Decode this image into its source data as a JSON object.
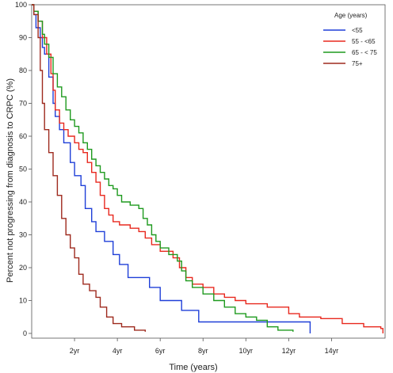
{
  "chart_data": {
    "type": "line",
    "subtype": "kaplan-meier-step",
    "xlabel": "Time (years)",
    "ylabel": "Percent not progressing from diagnosis to CRPC (%)",
    "xlim": [
      0,
      16.5
    ],
    "ylim": [
      0,
      100
    ],
    "y_ticks": [
      0,
      10,
      20,
      30,
      40,
      50,
      60,
      70,
      80,
      90,
      100
    ],
    "x_ticks": [
      {
        "value": 2,
        "label": "2yr"
      },
      {
        "value": 4,
        "label": "4yr"
      },
      {
        "value": 6,
        "label": "6yr"
      },
      {
        "value": 8,
        "label": "8yr"
      },
      {
        "value": 10,
        "label": "10yr"
      },
      {
        "value": 12,
        "label": "12yr"
      },
      {
        "value": 14,
        "label": "14yr"
      }
    ],
    "grid": false,
    "legend": {
      "title": "Age (years)",
      "position": "top-right"
    },
    "series": [
      {
        "name": "<55",
        "color": "#1f3fd8",
        "points": [
          [
            0,
            100
          ],
          [
            0.1,
            97
          ],
          [
            0.2,
            93
          ],
          [
            0.4,
            90
          ],
          [
            0.5,
            87
          ],
          [
            0.6,
            85
          ],
          [
            0.8,
            78
          ],
          [
            1.0,
            70
          ],
          [
            1.1,
            66
          ],
          [
            1.3,
            62
          ],
          [
            1.5,
            58
          ],
          [
            1.8,
            52
          ],
          [
            2.0,
            48
          ],
          [
            2.3,
            45
          ],
          [
            2.5,
            38
          ],
          [
            2.8,
            34
          ],
          [
            3.0,
            31
          ],
          [
            3.4,
            28
          ],
          [
            3.8,
            24
          ],
          [
            4.1,
            21
          ],
          [
            4.5,
            17
          ],
          [
            5.5,
            14
          ],
          [
            6.0,
            10
          ],
          [
            7.0,
            7
          ],
          [
            7.8,
            3.5
          ],
          [
            9.0,
            3.5
          ],
          [
            10.5,
            3.5
          ],
          [
            13.0,
            3.5
          ],
          [
            13.0,
            0
          ]
        ]
      },
      {
        "name": "55 - <65",
        "color": "#e8281e",
        "points": [
          [
            0,
            100
          ],
          [
            0.1,
            98
          ],
          [
            0.3,
            95
          ],
          [
            0.5,
            90
          ],
          [
            0.7,
            85
          ],
          [
            0.9,
            79
          ],
          [
            1.0,
            74
          ],
          [
            1.1,
            68
          ],
          [
            1.3,
            64
          ],
          [
            1.5,
            62
          ],
          [
            1.7,
            60
          ],
          [
            2.0,
            58
          ],
          [
            2.2,
            56
          ],
          [
            2.4,
            55
          ],
          [
            2.6,
            52
          ],
          [
            2.8,
            49
          ],
          [
            3.0,
            46
          ],
          [
            3.2,
            42
          ],
          [
            3.4,
            38
          ],
          [
            3.6,
            36
          ],
          [
            3.8,
            34
          ],
          [
            4.1,
            33
          ],
          [
            4.6,
            32
          ],
          [
            5.0,
            31
          ],
          [
            5.3,
            29
          ],
          [
            5.6,
            27
          ],
          [
            6.0,
            25
          ],
          [
            6.6,
            23
          ],
          [
            6.9,
            20
          ],
          [
            7.2,
            17
          ],
          [
            7.5,
            15
          ],
          [
            8.0,
            14
          ],
          [
            8.5,
            12
          ],
          [
            9.0,
            11
          ],
          [
            9.5,
            10
          ],
          [
            10.0,
            9
          ],
          [
            11.0,
            8
          ],
          [
            12.0,
            6
          ],
          [
            12.5,
            5
          ],
          [
            13.5,
            4.5
          ],
          [
            14.5,
            3
          ],
          [
            15.5,
            2
          ],
          [
            16.3,
            1.5
          ],
          [
            16.4,
            0
          ]
        ]
      },
      {
        "name": "65 - < 75",
        "color": "#1e9a1e",
        "points": [
          [
            0,
            100
          ],
          [
            0.1,
            98
          ],
          [
            0.3,
            95
          ],
          [
            0.5,
            91
          ],
          [
            0.6,
            88
          ],
          [
            0.8,
            84
          ],
          [
            1.0,
            79
          ],
          [
            1.2,
            75
          ],
          [
            1.4,
            72
          ],
          [
            1.6,
            68
          ],
          [
            1.8,
            65
          ],
          [
            2.0,
            63
          ],
          [
            2.2,
            61
          ],
          [
            2.4,
            58
          ],
          [
            2.6,
            56
          ],
          [
            2.8,
            53
          ],
          [
            3.0,
            51
          ],
          [
            3.2,
            49
          ],
          [
            3.4,
            47
          ],
          [
            3.6,
            45
          ],
          [
            3.8,
            44
          ],
          [
            4.0,
            42
          ],
          [
            4.2,
            40
          ],
          [
            4.6,
            39
          ],
          [
            5.0,
            38
          ],
          [
            5.2,
            35
          ],
          [
            5.4,
            33
          ],
          [
            5.6,
            30
          ],
          [
            5.8,
            28
          ],
          [
            6.0,
            26
          ],
          [
            6.4,
            24
          ],
          [
            6.8,
            22
          ],
          [
            7.0,
            19
          ],
          [
            7.2,
            16
          ],
          [
            7.5,
            14
          ],
          [
            8.0,
            12
          ],
          [
            8.5,
            10
          ],
          [
            9.0,
            8
          ],
          [
            9.5,
            6
          ],
          [
            10.0,
            5
          ],
          [
            10.5,
            4
          ],
          [
            11.0,
            2
          ],
          [
            11.5,
            1
          ],
          [
            12.0,
            1
          ],
          [
            12.2,
            0.5
          ]
        ]
      },
      {
        "name": "75+",
        "color": "#9e2a1e",
        "points": [
          [
            0,
            100
          ],
          [
            0.1,
            97
          ],
          [
            0.3,
            90
          ],
          [
            0.4,
            80
          ],
          [
            0.5,
            70
          ],
          [
            0.6,
            62
          ],
          [
            0.8,
            55
          ],
          [
            1.0,
            48
          ],
          [
            1.2,
            42
          ],
          [
            1.4,
            35
          ],
          [
            1.6,
            30
          ],
          [
            1.8,
            26
          ],
          [
            2.0,
            23
          ],
          [
            2.2,
            18
          ],
          [
            2.4,
            15
          ],
          [
            2.7,
            13
          ],
          [
            3.0,
            11
          ],
          [
            3.2,
            8
          ],
          [
            3.5,
            5
          ],
          [
            3.8,
            3
          ],
          [
            4.2,
            2
          ],
          [
            4.8,
            1
          ],
          [
            5.3,
            0.5
          ]
        ]
      }
    ]
  }
}
